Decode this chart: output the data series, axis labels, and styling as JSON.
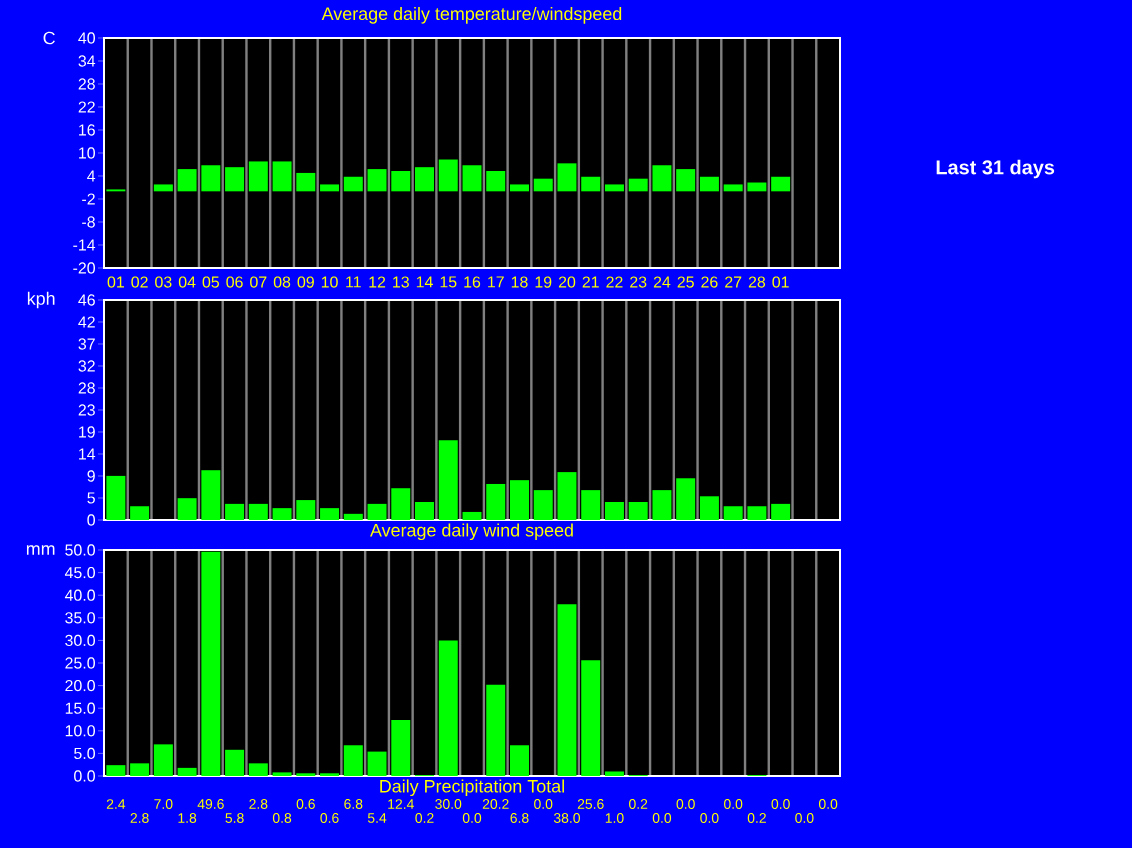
{
  "chart_data": [
    {
      "type": "bar",
      "title": "Average daily temperature/windspeed",
      "ylabel": "C",
      "categories": [
        "01",
        "02",
        "03",
        "04",
        "05",
        "06",
        "07",
        "08",
        "09",
        "10",
        "11",
        "12",
        "13",
        "14",
        "15",
        "16",
        "17",
        "18",
        "19",
        "20",
        "21",
        "22",
        "23",
        "24",
        "25",
        "26",
        "27",
        "28",
        "01",
        null,
        null
      ],
      "values": [
        0.5,
        0,
        1.8,
        5.8,
        6.8,
        6.3,
        7.8,
        7.8,
        4.8,
        1.8,
        3.8,
        5.8,
        5.3,
        6.3,
        8.3,
        6.8,
        5.3,
        1.8,
        3.3,
        7.3,
        3.8,
        1.8,
        3.3,
        6.8,
        5.8,
        3.8,
        1.8,
        2.3,
        3.8,
        null,
        null
      ],
      "color": "#00ff00",
      "ylim": [
        -20,
        40
      ],
      "yticks": [
        -20,
        -14,
        -8,
        -2,
        4,
        10,
        16,
        22,
        28,
        34,
        40
      ],
      "grid": "x",
      "annotations": [
        "Last 31 days"
      ]
    },
    {
      "type": "bar",
      "xlabel": "Average daily wind speed",
      "ylabel": "kph",
      "categories": [
        null,
        null,
        null,
        null,
        null,
        null,
        null,
        null,
        null,
        null,
        null,
        null,
        null,
        null,
        null,
        null,
        null,
        null,
        null,
        null,
        null,
        null,
        null,
        null,
        null,
        null,
        null,
        null,
        null,
        null,
        null
      ],
      "values": [
        9.3,
        2.9,
        0,
        4.6,
        10.5,
        3.4,
        3.4,
        2.5,
        4.2,
        2.5,
        1.3,
        3.4,
        6.7,
        3.8,
        16.8,
        1.7,
        7.6,
        8.4,
        6.3,
        10.1,
        6.3,
        3.8,
        3.8,
        6.3,
        8.8,
        5.0,
        2.9,
        2.9,
        3.4,
        null,
        null
      ],
      "color": "#00ff00",
      "ylim": [
        0,
        46.4
      ],
      "yticks": [
        0,
        {
          "value": 4.64,
          "label": "5"
        },
        {
          "value": 9.28,
          "label": "9"
        },
        {
          "value": 13.92,
          "label": "14"
        },
        {
          "value": 18.56,
          "label": "19"
        },
        {
          "value": 23.2,
          "label": "23"
        },
        {
          "value": 27.84,
          "label": "28"
        },
        {
          "value": 32.48,
          "label": "32"
        },
        {
          "value": 37.12,
          "label": "37"
        },
        {
          "value": 41.76,
          "label": "42"
        },
        {
          "value": 46.4,
          "label": "46"
        }
      ],
      "grid": "x",
      "tick_labels": "y"
    },
    {
      "type": "bar",
      "xlabel": "Daily Precipitation Total",
      "ylabel": "mm",
      "categories": [
        null,
        null,
        null,
        null,
        null,
        null,
        null,
        null,
        null,
        null,
        null,
        null,
        null,
        null,
        null,
        null,
        null,
        null,
        null,
        null,
        null,
        null,
        null,
        null,
        null,
        null,
        null,
        null,
        null,
        null,
        null
      ],
      "values": [
        2.4,
        2.8,
        7.0,
        1.8,
        49.6,
        5.8,
        2.8,
        0.8,
        0.6,
        0.6,
        6.8,
        5.4,
        12.4,
        0.2,
        30.0,
        0.0,
        20.2,
        6.8,
        0.0,
        38.0,
        25.6,
        1.0,
        0.2,
        0.0,
        0.0,
        0.0,
        0.0,
        0.2,
        0.0,
        0.0,
        0.0
      ],
      "value_labels": [
        "2.4",
        "2.8",
        "7.0",
        "1.8",
        "49.6",
        "5.8",
        "2.8",
        "0.8",
        "0.6",
        "0.6",
        "6.8",
        "5.4",
        "12.4",
        "0.2",
        "30.0",
        "0.0",
        "20.2",
        "6.8",
        "0.0",
        "38.0",
        "25.6",
        "1.0",
        "0.2",
        "0.0",
        "0.0",
        "0.0",
        "0.0",
        "0.2",
        "0.0",
        "0.0",
        "0.0"
      ],
      "color": "#00ff00",
      "ylim": [
        0,
        50
      ],
      "yticks": [
        {
          "value": 0,
          "label": "0.0"
        },
        {
          "value": 5,
          "label": "5.0"
        },
        {
          "value": 10,
          "label": "10.0"
        },
        {
          "value": 15,
          "label": "15.0"
        },
        {
          "value": 20,
          "label": "20.0"
        },
        {
          "value": 25,
          "label": "25.0"
        },
        {
          "value": 30,
          "label": "30.0"
        },
        {
          "value": 35,
          "label": "35.0"
        },
        {
          "value": 40,
          "label": "40.0"
        },
        {
          "value": 45,
          "label": "45.0"
        },
        {
          "value": 50,
          "label": "50.0"
        }
      ],
      "grid": "x",
      "tick_labels": "y"
    }
  ]
}
